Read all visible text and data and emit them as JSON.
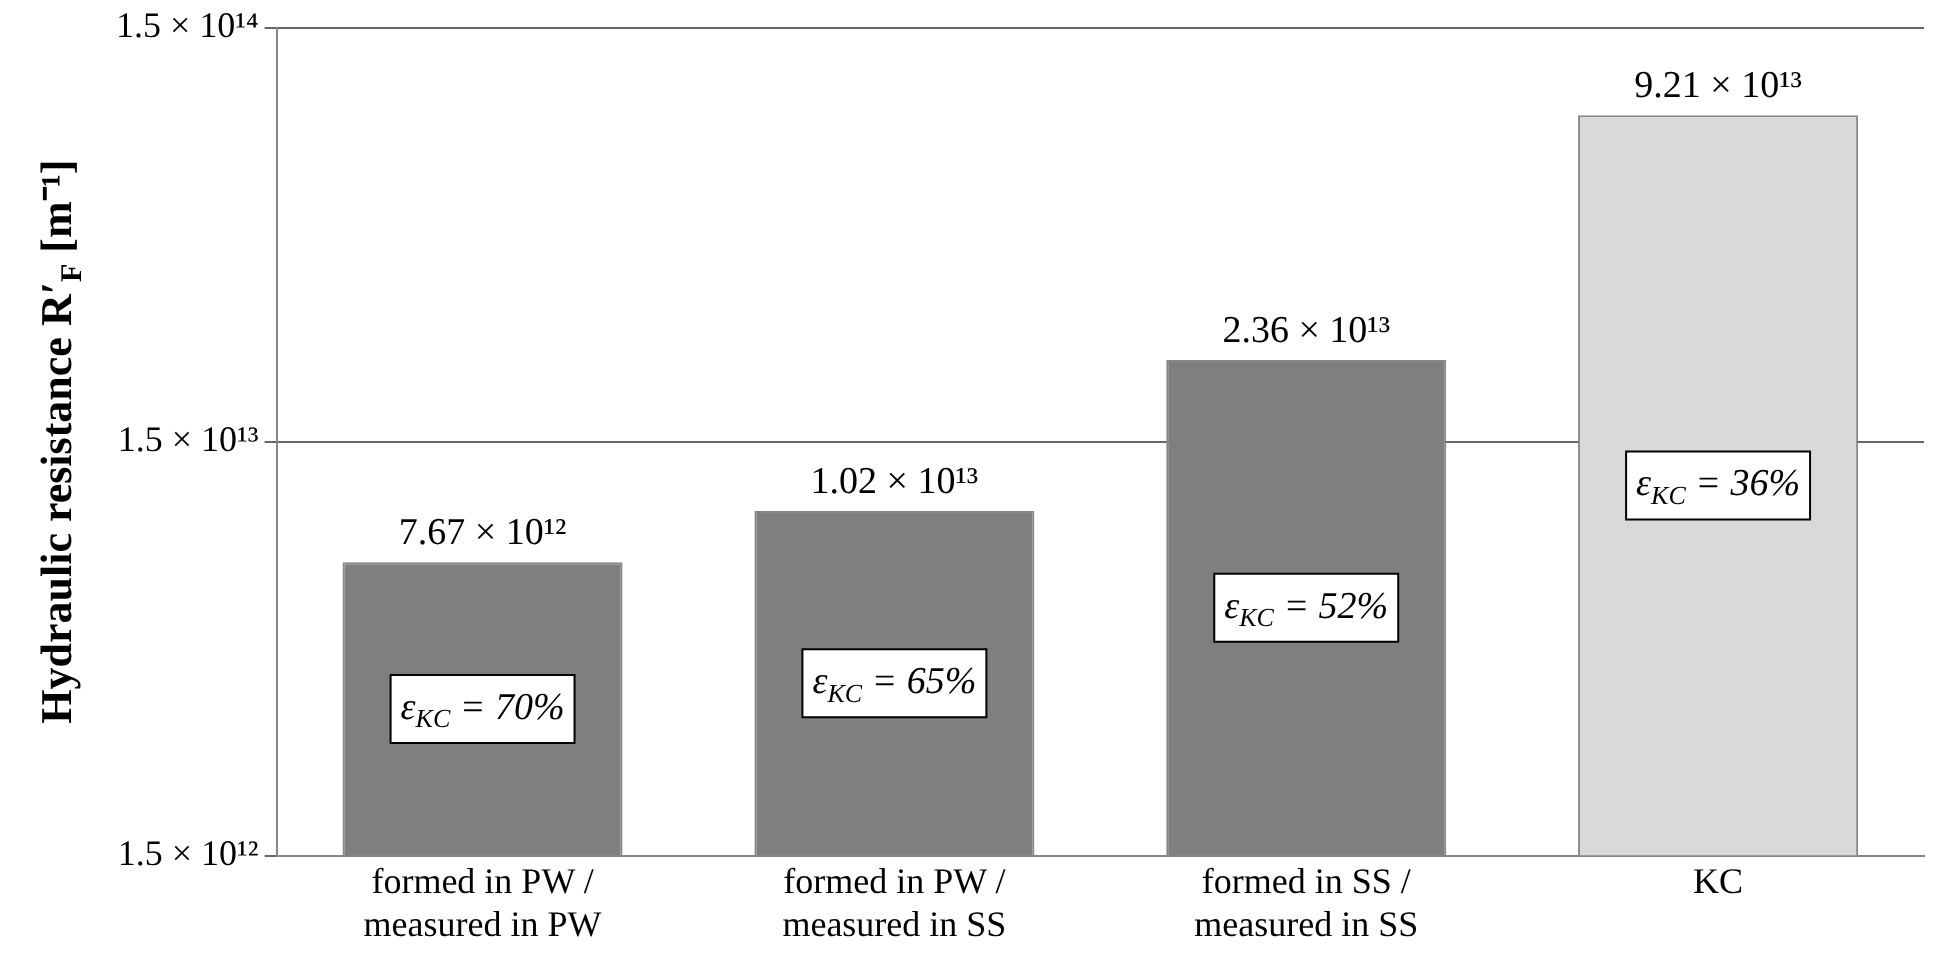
{
  "chart_data": {
    "type": "bar",
    "ylabel": "Hydraulic resistance R′$_{F}$ [m⁻¹]",
    "categories": [
      "formed in PW /\nmeasured in PW",
      "formed in PW /\nmeasured in SS",
      "formed in SS /\nmeasured in SS",
      "KC"
    ],
    "values": [
      7670000000000.0,
      10200000000000.0,
      23600000000000.0,
      92100000000000.0
    ],
    "colors": [
      "#7f7f7f",
      "#7f7f7f",
      "#7f7f7f",
      "#d9d9d9"
    ],
    "value_labels": [
      "7.67 × 10¹²",
      "1.02 × 10¹³",
      "2.36 × 10¹³",
      "9.21 × 10¹³"
    ],
    "annotations": [
      "ε$_{KC}$ = 70%",
      "ε$_{KC}$ = 65%",
      "ε$_{KC}$ = 52%",
      "ε$_{KC}$ = 36%"
    ],
    "log": "y",
    "ylim": [
      1500000000000.0,
      150000000000000.0
    ],
    "yticks": [
      {
        "value": 1500000000000.0,
        "label": "1.5 × 10¹²"
      },
      {
        "value": 15000000000000.0,
        "label": "1.5 × 10¹³"
      },
      {
        "value": 150000000000000.0,
        "label": "1.5 × 10¹⁴"
      }
    ],
    "grid": "y",
    "legend": false
  }
}
